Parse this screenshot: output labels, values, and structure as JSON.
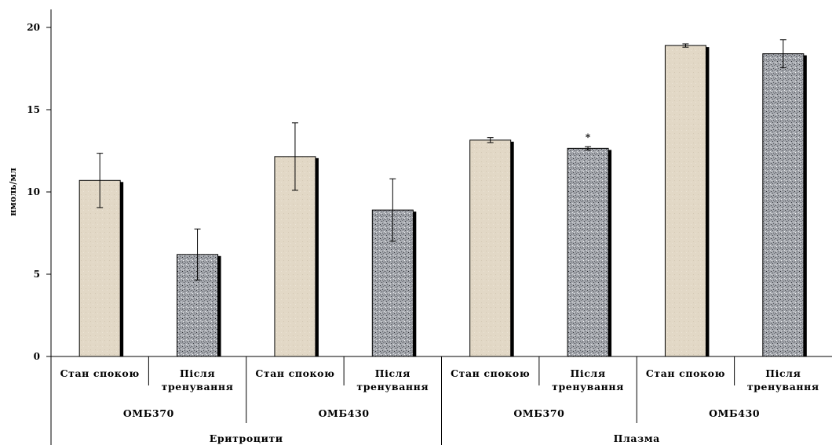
{
  "chart_data": {
    "type": "bar",
    "title": "",
    "ylabel": "нмоль/мл",
    "xlabel": "",
    "ylim": [
      0,
      20
    ],
    "yticks": [
      0,
      5,
      10,
      15,
      20
    ],
    "grid": false,
    "legend": "none",
    "categories": [
      "Стан спокою",
      "Після тренування",
      "Стан спокою",
      "Після тренування",
      "Стан спокою",
      "Після тренування",
      "Стан спокою",
      "Після тренування"
    ],
    "groups_level1": [
      {
        "label": "ОМБ370",
        "span": [
          0,
          1
        ]
      },
      {
        "label": "ОМБ430",
        "span": [
          2,
          3
        ]
      },
      {
        "label": "ОМБ370",
        "span": [
          4,
          5
        ]
      },
      {
        "label": "ОМБ430",
        "span": [
          6,
          7
        ]
      }
    ],
    "groups_level2": [
      {
        "label": "Еритроцити",
        "span": [
          0,
          3
        ]
      },
      {
        "label": "Плазма",
        "span": [
          4,
          7
        ]
      }
    ],
    "values": [
      10.7,
      6.2,
      12.15,
      8.9,
      13.15,
      12.65,
      18.9,
      18.4
    ],
    "errors": [
      1.65,
      1.55,
      2.05,
      1.9,
      0.15,
      0.1,
      0.1,
      0.85
    ],
    "annotations": [
      {
        "index": 5,
        "text": "*"
      }
    ],
    "colors": {
      "rest_fill": "#e2d8c6",
      "after_fill": "#9b9ea3",
      "bar_shadow": "#000000",
      "axis": "#000000"
    }
  }
}
